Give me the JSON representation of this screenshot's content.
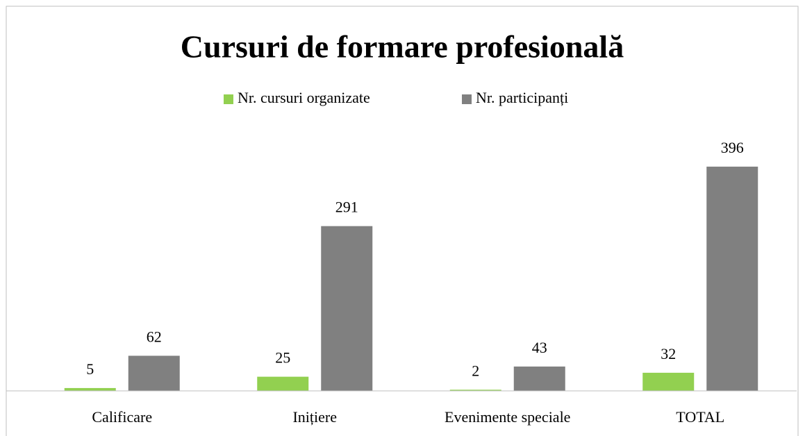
{
  "chart_data": {
    "type": "bar",
    "title": "Cursuri de formare profesională",
    "categories": [
      "Calificare",
      "Inițiere",
      "Evenimente speciale",
      "TOTAL"
    ],
    "series": [
      {
        "name": "Nr. cursuri organizate",
        "color": "#92d050",
        "values": [
          5,
          25,
          2,
          32
        ]
      },
      {
        "name": "Nr. participanți",
        "color": "#808080",
        "values": [
          62,
          291,
          43,
          396
        ]
      }
    ],
    "ylim": [
      0,
      450
    ],
    "legend": "top"
  }
}
